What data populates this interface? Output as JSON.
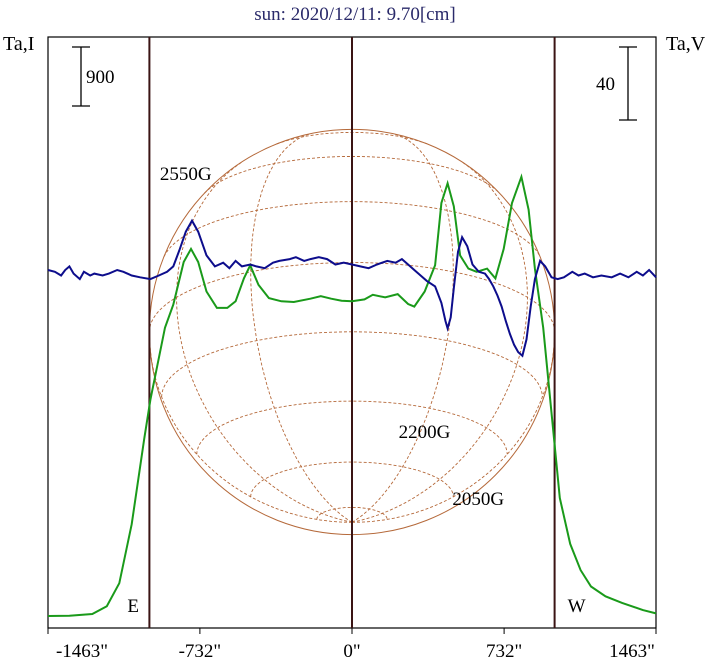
{
  "chart_data": {
    "type": "line",
    "title": "sun: 2020/12/11: 9.70[cm]",
    "left_axis_label": "Ta,I",
    "right_axis_label": "Ta,V",
    "left_scale_bar": "900",
    "right_scale_bar": "40",
    "x_ticks": [
      -1463,
      -732,
      0,
      732,
      1463
    ],
    "x_tick_labels": [
      "-1463\"",
      "-732\"",
      "0\"",
      "732\"",
      "1463\""
    ],
    "xlim": [
      -1463,
      1463
    ],
    "limb_markers": [
      {
        "label": "E",
        "x": -975
      },
      {
        "label": "W",
        "x": 975
      }
    ],
    "disk_radius_arcsec": 975,
    "annotations": [
      {
        "text": "2550G",
        "x": -780,
        "y_series": "Ta,I"
      },
      {
        "text": "2200G",
        "x": 465,
        "y_series": "Ta,V"
      },
      {
        "text": "2050G",
        "x": 820,
        "y_series": "Ta,V"
      }
    ],
    "series": [
      {
        "axis": "left",
        "color": "#1a9a1a",
        "points": [
          [
            -1463,
            0
          ],
          [
            -1360,
            5
          ],
          [
            -1250,
            30
          ],
          [
            -1180,
            150
          ],
          [
            -1120,
            500
          ],
          [
            -1060,
            1400
          ],
          [
            -1000,
            2700
          ],
          [
            -970,
            3300
          ],
          [
            -900,
            4400
          ],
          [
            -860,
            4750
          ],
          [
            -810,
            5400
          ],
          [
            -775,
            5600
          ],
          [
            -740,
            5400
          ],
          [
            -700,
            4950
          ],
          [
            -650,
            4700
          ],
          [
            -600,
            4700
          ],
          [
            -560,
            4800
          ],
          [
            -520,
            5150
          ],
          [
            -490,
            5350
          ],
          [
            -450,
            5050
          ],
          [
            -400,
            4850
          ],
          [
            -340,
            4800
          ],
          [
            -280,
            4790
          ],
          [
            -200,
            4840
          ],
          [
            -150,
            4880
          ],
          [
            -100,
            4840
          ],
          [
            -50,
            4810
          ],
          [
            0,
            4800
          ],
          [
            60,
            4830
          ],
          [
            100,
            4900
          ],
          [
            160,
            4860
          ],
          [
            220,
            4910
          ],
          [
            270,
            4760
          ],
          [
            300,
            4720
          ],
          [
            350,
            4950
          ],
          [
            400,
            5350
          ],
          [
            430,
            6300
          ],
          [
            460,
            6600
          ],
          [
            490,
            6250
          ],
          [
            520,
            5500
          ],
          [
            560,
            5300
          ],
          [
            600,
            5250
          ],
          [
            650,
            5300
          ],
          [
            690,
            5150
          ],
          [
            730,
            5600
          ],
          [
            770,
            6300
          ],
          [
            815,
            6700
          ],
          [
            850,
            6200
          ],
          [
            880,
            5300
          ],
          [
            920,
            4400
          ],
          [
            960,
            3100
          ],
          [
            1000,
            1800
          ],
          [
            1050,
            1100
          ],
          [
            1100,
            700
          ],
          [
            1150,
            450
          ],
          [
            1220,
            300
          ],
          [
            1300,
            200
          ],
          [
            1400,
            90
          ],
          [
            1463,
            40
          ]
        ]
      },
      {
        "axis": "right",
        "color": "#0d0d8c",
        "points": [
          [
            -1463,
            0
          ],
          [
            -1430,
            -1
          ],
          [
            -1400,
            -3
          ],
          [
            -1380,
            0
          ],
          [
            -1360,
            2
          ],
          [
            -1340,
            -2
          ],
          [
            -1310,
            -5
          ],
          [
            -1290,
            -1
          ],
          [
            -1260,
            -3
          ],
          [
            -1240,
            -2
          ],
          [
            -1200,
            -3
          ],
          [
            -1170,
            -2
          ],
          [
            -1130,
            0
          ],
          [
            -1100,
            -1
          ],
          [
            -1060,
            -3
          ],
          [
            -1020,
            -4
          ],
          [
            -970,
            -5
          ],
          [
            -930,
            -3
          ],
          [
            -890,
            -1
          ],
          [
            -860,
            2
          ],
          [
            -830,
            11
          ],
          [
            -800,
            21
          ],
          [
            -770,
            27
          ],
          [
            -740,
            21
          ],
          [
            -700,
            8
          ],
          [
            -660,
            2
          ],
          [
            -620,
            4
          ],
          [
            -590,
            1
          ],
          [
            -560,
            5
          ],
          [
            -530,
            2
          ],
          [
            -490,
            3
          ],
          [
            -460,
            2
          ],
          [
            -420,
            1
          ],
          [
            -380,
            4
          ],
          [
            -350,
            5
          ],
          [
            -300,
            6
          ],
          [
            -270,
            7
          ],
          [
            -230,
            5
          ],
          [
            -200,
            6
          ],
          [
            -160,
            7
          ],
          [
            -120,
            6
          ],
          [
            -80,
            3
          ],
          [
            -40,
            4
          ],
          [
            0,
            3
          ],
          [
            40,
            2
          ],
          [
            80,
            1
          ],
          [
            120,
            3
          ],
          [
            170,
            5
          ],
          [
            210,
            4
          ],
          [
            240,
            6
          ],
          [
            270,
            3
          ],
          [
            300,
            0
          ],
          [
            330,
            -3
          ],
          [
            360,
            -6
          ],
          [
            400,
            -9
          ],
          [
            430,
            -18
          ],
          [
            450,
            -28
          ],
          [
            460,
            -32
          ],
          [
            475,
            -26
          ],
          [
            490,
            -10
          ],
          [
            510,
            10
          ],
          [
            530,
            18
          ],
          [
            555,
            13
          ],
          [
            580,
            3
          ],
          [
            610,
            -1
          ],
          [
            640,
            -2
          ],
          [
            660,
            -5
          ],
          [
            680,
            -9
          ],
          [
            700,
            -14
          ],
          [
            720,
            -20
          ],
          [
            740,
            -28
          ],
          [
            760,
            -35
          ],
          [
            780,
            -41
          ],
          [
            800,
            -45
          ],
          [
            820,
            -47
          ],
          [
            840,
            -38
          ],
          [
            860,
            -20
          ],
          [
            880,
            -5
          ],
          [
            905,
            5
          ],
          [
            930,
            2
          ],
          [
            960,
            -4
          ],
          [
            990,
            -5
          ],
          [
            1020,
            -4
          ],
          [
            1060,
            -1
          ],
          [
            1090,
            -3
          ],
          [
            1120,
            -2
          ],
          [
            1160,
            -4
          ],
          [
            1200,
            -3
          ],
          [
            1250,
            -4
          ],
          [
            1290,
            -2
          ],
          [
            1330,
            -4
          ],
          [
            1370,
            -1
          ],
          [
            1400,
            -3
          ],
          [
            1430,
            0
          ],
          [
            1463,
            -4
          ]
        ]
      }
    ]
  }
}
